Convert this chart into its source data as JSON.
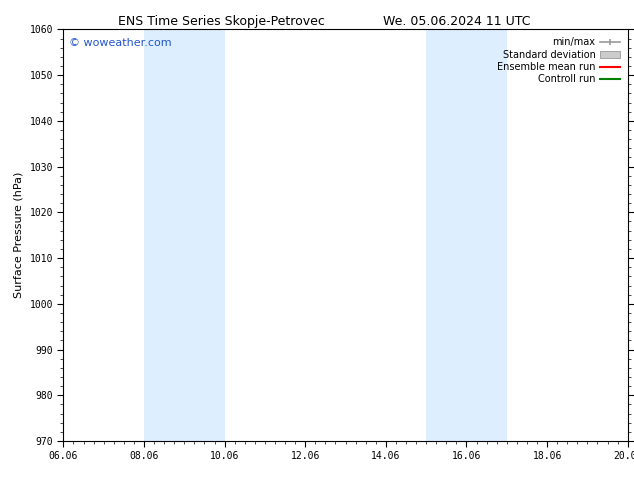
{
  "title_left": "ENS Time Series Skopje-Petrovec",
  "title_right": "We. 05.06.2024 11 UTC",
  "ylabel": "Surface Pressure (hPa)",
  "ylim": [
    970,
    1060
  ],
  "yticks": [
    970,
    980,
    990,
    1000,
    1010,
    1020,
    1030,
    1040,
    1050,
    1060
  ],
  "xlim_start": 6.06,
  "xlim_end": 20.06,
  "xtick_labels": [
    "06.06",
    "08.06",
    "10.06",
    "12.06",
    "14.06",
    "16.06",
    "18.06",
    "20.06"
  ],
  "shaded_bands": [
    {
      "xmin": 8.06,
      "xmax": 10.06
    },
    {
      "xmin": 15.06,
      "xmax": 17.06
    }
  ],
  "shade_color": "#ddeeff",
  "watermark": "© woweather.com",
  "watermark_color": "#2255cc",
  "legend_items": [
    {
      "label": "min/max",
      "color": "#999999",
      "style": "line_with_caps"
    },
    {
      "label": "Standard deviation",
      "color": "#cccccc",
      "style": "bar"
    },
    {
      "label": "Ensemble mean run",
      "color": "#ff0000",
      "style": "line"
    },
    {
      "label": "Controll run",
      "color": "#008000",
      "style": "line"
    }
  ],
  "bg_color": "#ffffff",
  "title_fontsize": 9,
  "axis_label_fontsize": 8,
  "tick_fontsize": 7,
  "legend_fontsize": 7,
  "watermark_fontsize": 8
}
